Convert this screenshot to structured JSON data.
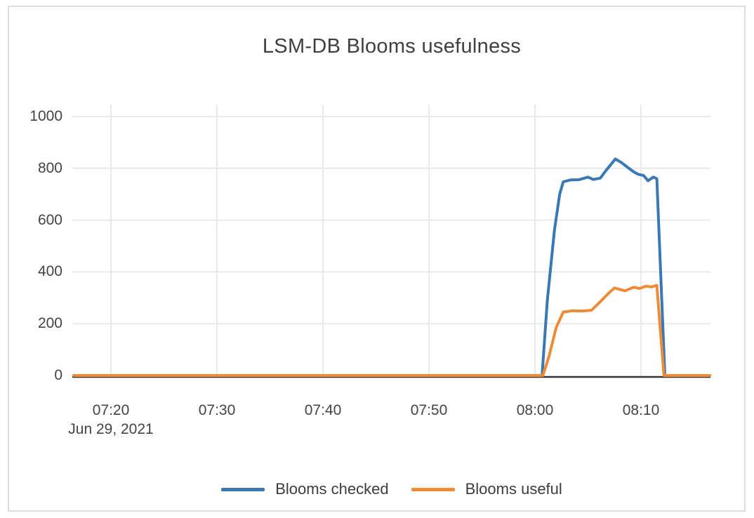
{
  "chart": {
    "title": "LSM-DB Blooms usefulness",
    "colors": {
      "blooms_checked": "#3a78b3",
      "blooms_useful": "#ee8b37",
      "grid": "#e9e9e9",
      "axis_line": "#333333",
      "text": "#444444",
      "frame_border": "#dcdcdc"
    },
    "legend": {
      "items": [
        {
          "label": "Blooms checked",
          "color": "#3a78b3"
        },
        {
          "label": "Blooms useful",
          "color": "#ee8b37"
        }
      ]
    }
  },
  "chart_data": {
    "type": "line",
    "title": "LSM-DB Blooms usefulness",
    "grid": true,
    "legend_position": "bottom-center",
    "x_axis": {
      "date": "Jun 29, 2021",
      "ticks": [
        "07:20",
        "07:30",
        "07:40",
        "07:50",
        "08:00",
        "08:10"
      ],
      "range": [
        "07:16:30",
        "08:16:30"
      ]
    },
    "y_axis": {
      "ticks": [
        0,
        200,
        400,
        600,
        800,
        1000
      ],
      "range": [
        0,
        1050
      ]
    },
    "series": [
      {
        "name": "Blooms checked",
        "color": "#3a78b3",
        "points": [
          [
            "07:16:30",
            0
          ],
          [
            "08:00:40",
            0
          ],
          [
            "08:01:10",
            290
          ],
          [
            "08:01:50",
            560
          ],
          [
            "08:02:20",
            700
          ],
          [
            "08:02:40",
            748
          ],
          [
            "08:03:20",
            755
          ],
          [
            "08:04:10",
            756
          ],
          [
            "08:05:00",
            766
          ],
          [
            "08:05:30",
            757
          ],
          [
            "08:06:10",
            762
          ],
          [
            "08:06:40",
            790
          ],
          [
            "08:07:10",
            815
          ],
          [
            "08:07:35",
            836
          ],
          [
            "08:08:10",
            822
          ],
          [
            "08:08:40",
            806
          ],
          [
            "08:09:20",
            786
          ],
          [
            "08:09:45",
            777
          ],
          [
            "08:10:15",
            772
          ],
          [
            "08:10:40",
            752
          ],
          [
            "08:11:10",
            766
          ],
          [
            "08:11:30",
            760
          ],
          [
            "08:12:15",
            0
          ],
          [
            "08:16:30",
            0
          ]
        ]
      },
      {
        "name": "Blooms useful",
        "color": "#ee8b37",
        "points": [
          [
            "07:16:30",
            0
          ],
          [
            "08:00:45",
            0
          ],
          [
            "08:01:20",
            75
          ],
          [
            "08:02:00",
            185
          ],
          [
            "08:02:40",
            245
          ],
          [
            "08:03:30",
            250
          ],
          [
            "08:04:30",
            249
          ],
          [
            "08:05:20",
            252
          ],
          [
            "08:06:10",
            285
          ],
          [
            "08:07:00",
            320
          ],
          [
            "08:07:30",
            338
          ],
          [
            "08:08:30",
            327
          ],
          [
            "08:09:20",
            341
          ],
          [
            "08:09:50",
            336
          ],
          [
            "08:10:30",
            345
          ],
          [
            "08:11:00",
            342
          ],
          [
            "08:11:30",
            348
          ],
          [
            "08:12:10",
            0
          ],
          [
            "08:16:30",
            0
          ]
        ]
      }
    ]
  }
}
